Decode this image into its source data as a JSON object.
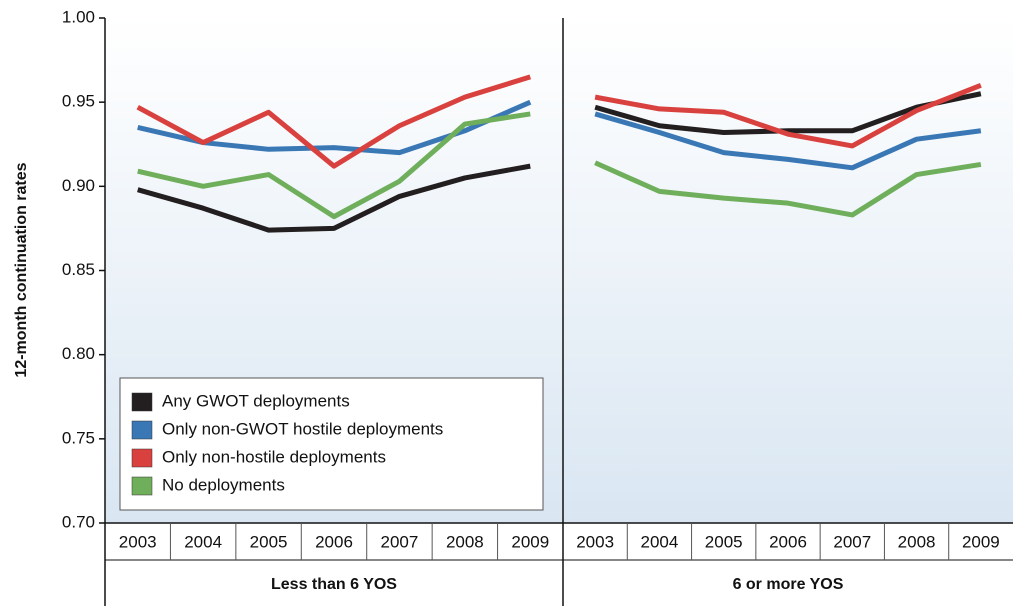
{
  "chart_data": {
    "type": "line",
    "y_label": "12-month continuation rates",
    "ylim": [
      0.7,
      1.0
    ],
    "yticks": [
      {
        "value": 0.7,
        "label": "0.70"
      },
      0.75,
      {
        "value": 0.8,
        "label": "0.80"
      },
      0.85,
      {
        "value": 0.9,
        "label": "0.90"
      },
      0.95,
      {
        "value": 1.0,
        "label": "1.00"
      }
    ],
    "legend": "lower-left",
    "groups": [
      {
        "label": "Less than 6 YOS",
        "categories": [
          "2003",
          "2004",
          "2005",
          "2006",
          "2007",
          "2008",
          "2009"
        ]
      },
      {
        "label": "6 or more YOS",
        "categories": [
          "2003",
          "2004",
          "2005",
          "2006",
          "2007",
          "2008",
          "2009"
        ]
      }
    ],
    "series": [
      {
        "name": "Any GWOT deployments",
        "color": "#231f20",
        "values": [
          [
            0.898,
            0.887,
            0.874,
            0.875,
            0.894,
            0.905,
            0.912
          ],
          [
            0.947,
            0.936,
            0.932,
            0.933,
            0.933,
            0.947,
            0.955
          ]
        ]
      },
      {
        "name": "Only non-GWOT hostile deployments",
        "color": "#3a78b5",
        "values": [
          [
            0.935,
            0.926,
            0.922,
            0.923,
            0.92,
            0.933,
            0.95
          ],
          [
            0.943,
            0.932,
            0.92,
            0.916,
            0.911,
            0.928,
            0.933
          ]
        ]
      },
      {
        "name": "Only non-hostile deployments",
        "color": "#d9413f",
        "values": [
          [
            0.947,
            0.926,
            0.944,
            0.912,
            0.936,
            0.953,
            0.965
          ],
          [
            0.953,
            0.946,
            0.944,
            0.931,
            0.924,
            0.945,
            0.96
          ]
        ]
      },
      {
        "name": "No deployments",
        "color": "#6fae5b",
        "values": [
          [
            0.909,
            0.9,
            0.907,
            0.882,
            0.903,
            0.937,
            0.943
          ],
          [
            0.914,
            0.897,
            0.893,
            0.89,
            0.883,
            0.907,
            0.913
          ]
        ]
      }
    ]
  }
}
